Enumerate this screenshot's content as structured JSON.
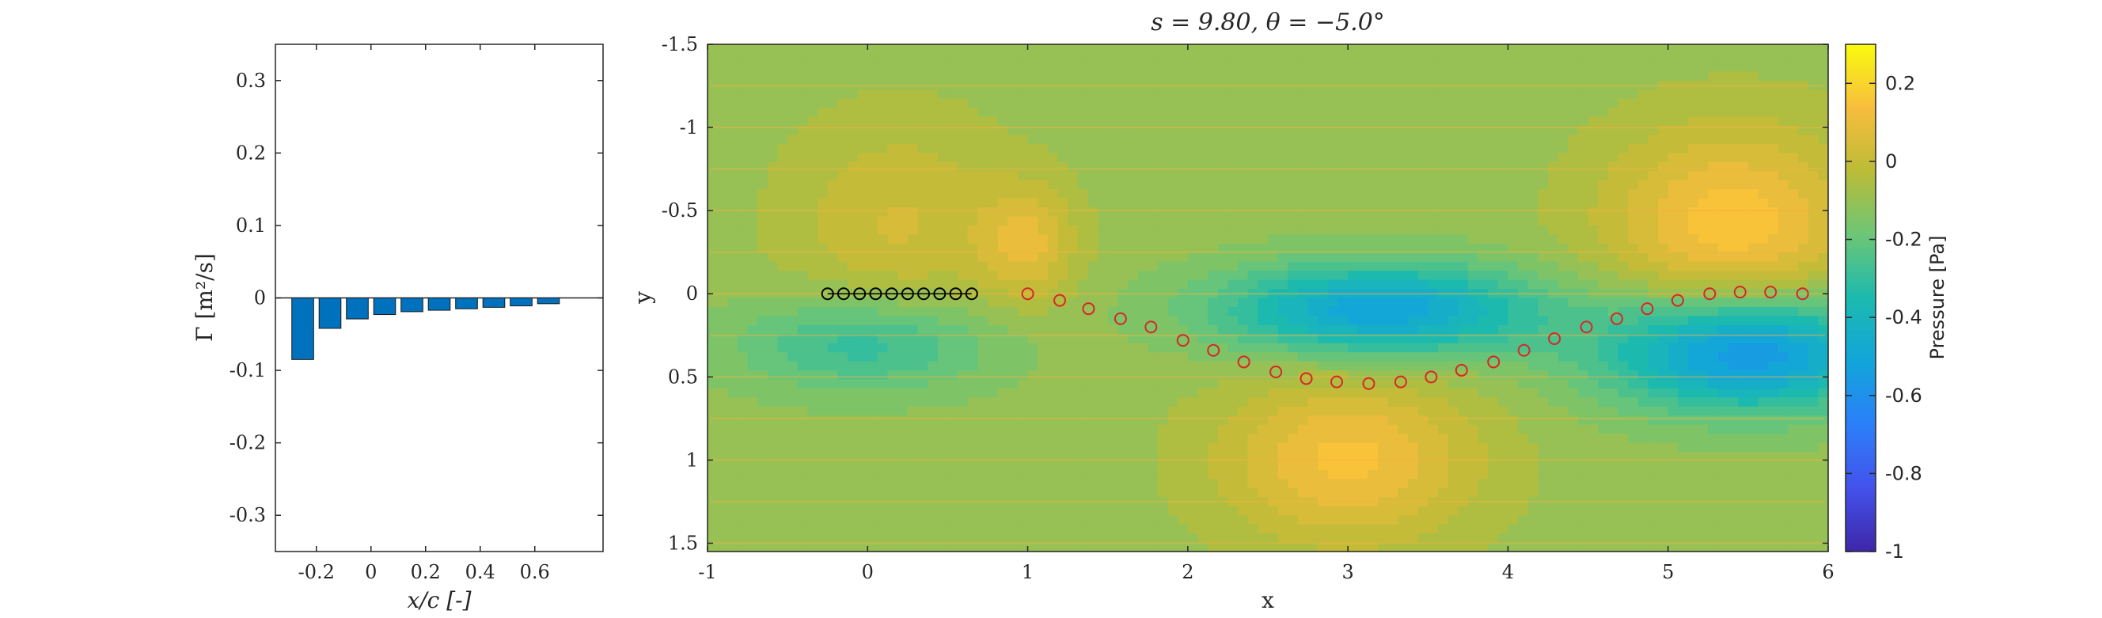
{
  "chart_data": [
    {
      "type": "bar",
      "xlabel": "x/c [-]",
      "ylabel": "Γ [m²/s]",
      "xlim": [
        -0.35,
        0.85
      ],
      "ylim": [
        -0.35,
        0.35
      ],
      "xticks": [
        "-0.2",
        "0",
        "0.2",
        "0.4",
        "0.6"
      ],
      "xtick_values": [
        -0.2,
        0,
        0.2,
        0.4,
        0.6
      ],
      "yticks": [
        "-0.3",
        "-0.2",
        "-0.1",
        "0",
        "0.1",
        "0.2",
        "0.3"
      ],
      "ytick_values": [
        -0.3,
        -0.2,
        -0.1,
        0,
        0.1,
        0.2,
        0.3
      ],
      "x": [
        -0.25,
        -0.15,
        -0.05,
        0.05,
        0.15,
        0.25,
        0.35,
        0.45,
        0.55,
        0.65
      ],
      "values": [
        -0.085,
        -0.042,
        -0.029,
        -0.023,
        -0.019,
        -0.017,
        -0.015,
        -0.013,
        -0.011,
        -0.008
      ],
      "bar_color": "#0072BD",
      "grid": false
    },
    {
      "type": "heatmap",
      "title": "s = 9.80, θ = −5.0°",
      "xlabel": "x",
      "ylabel": "y",
      "xlim": [
        -1,
        6
      ],
      "ylim": [
        -1.5,
        1.55
      ],
      "y_reversed": true,
      "xticks": [
        "-1",
        "0",
        "1",
        "2",
        "3",
        "4",
        "5",
        "6"
      ],
      "xtick_values": [
        -1,
        0,
        1,
        2,
        3,
        4,
        5,
        6
      ],
      "yticks": [
        "-1.5",
        "-1",
        "-0.5",
        "0",
        "0.5",
        "1",
        "1.5"
      ],
      "ytick_values": [
        -1.5,
        -1,
        -0.5,
        0,
        0.5,
        1,
        1.5
      ],
      "colorbar": {
        "label": "Pressure [Pa]",
        "range": [
          -1,
          0.3
        ],
        "ticks": [
          "0.2",
          "0",
          "-0.2",
          "-0.4",
          "-0.6",
          "-0.8",
          "-1"
        ],
        "tick_values": [
          0.2,
          0,
          -0.2,
          -0.4,
          -0.6,
          -0.8,
          -1
        ],
        "colormap": "parula"
      },
      "airfoil_points": {
        "marker_color": "#000000",
        "x": [
          -0.25,
          -0.15,
          -0.05,
          0.05,
          0.15,
          0.25,
          0.35,
          0.45,
          0.55,
          0.65
        ],
        "y": [
          0,
          0,
          0,
          0,
          0,
          0,
          0,
          0,
          0,
          0
        ]
      },
      "wake_points": {
        "marker_color": "#D62728",
        "x": [
          1.0,
          1.2,
          1.38,
          1.58,
          1.77,
          1.97,
          2.16,
          2.35,
          2.55,
          2.74,
          2.93,
          3.13,
          3.33,
          3.52,
          3.71,
          3.91,
          4.1,
          4.29,
          4.49,
          4.68,
          4.87,
          5.06,
          5.26,
          5.45,
          5.64,
          5.84
        ],
        "y": [
          0.0,
          0.04,
          0.09,
          0.15,
          0.2,
          0.28,
          0.34,
          0.41,
          0.47,
          0.51,
          0.53,
          0.54,
          0.53,
          0.5,
          0.46,
          0.41,
          0.34,
          0.27,
          0.2,
          0.15,
          0.09,
          0.04,
          0.0,
          -0.01,
          -0.01,
          0.0
        ]
      },
      "pressure_field": {
        "background": -0.1,
        "features": [
          {
            "x": 0.2,
            "y": -0.4,
            "value": 0.13,
            "sx": 0.7,
            "sy": 0.65
          },
          {
            "x": 1.0,
            "y": -0.3,
            "value": 0.17,
            "sx": 0.3,
            "sy": 0.35
          },
          {
            "x": 3.0,
            "y": 1.0,
            "value": 0.24,
            "sx": 0.8,
            "sy": 0.5
          },
          {
            "x": 5.4,
            "y": -0.4,
            "value": 0.26,
            "sx": 0.8,
            "sy": 0.6
          },
          {
            "x": 0.0,
            "y": 0.3,
            "value": -0.22,
            "sx": 0.8,
            "sy": 0.3
          },
          {
            "x": 3.2,
            "y": 0.1,
            "value": -0.42,
            "sx": 1.0,
            "sy": 0.28
          },
          {
            "x": 5.5,
            "y": 0.35,
            "value": -0.5,
            "sx": 0.9,
            "sy": 0.35
          }
        ]
      }
    }
  ]
}
